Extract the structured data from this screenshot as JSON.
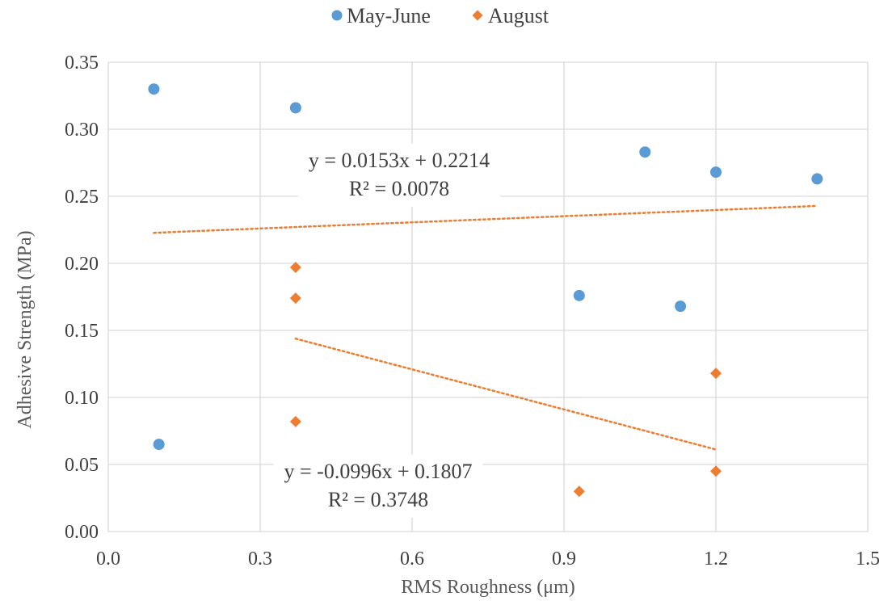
{
  "chart_data": {
    "type": "scatter",
    "title": "",
    "xlabel": "RMS Roughness (μm)",
    "ylabel": "Adhesive Strength (MPa)",
    "xlim": [
      0.0,
      1.5
    ],
    "ylim": [
      0.0,
      0.35
    ],
    "x_ticks": [
      "0.0",
      "0.3",
      "0.6",
      "0.9",
      "1.2",
      "1.5"
    ],
    "y_ticks": [
      "0.00",
      "0.05",
      "0.10",
      "0.15",
      "0.20",
      "0.25",
      "0.30",
      "0.35"
    ],
    "grid": true,
    "legend_position": "top-center",
    "series": [
      {
        "name": "May-June",
        "marker": "circle",
        "color": "#5B9BD5",
        "points": [
          {
            "x": 0.09,
            "y": 0.33
          },
          {
            "x": 0.1,
            "y": 0.065
          },
          {
            "x": 0.37,
            "y": 0.316
          },
          {
            "x": 0.93,
            "y": 0.176
          },
          {
            "x": 1.06,
            "y": 0.283
          },
          {
            "x": 1.13,
            "y": 0.168
          },
          {
            "x": 1.2,
            "y": 0.268
          },
          {
            "x": 1.4,
            "y": 0.263
          }
        ]
      },
      {
        "name": "August",
        "marker": "diamond",
        "color": "#ED7D31",
        "points": [
          {
            "x": 0.37,
            "y": 0.197
          },
          {
            "x": 0.37,
            "y": 0.174
          },
          {
            "x": 0.37,
            "y": 0.082
          },
          {
            "x": 0.93,
            "y": 0.03
          },
          {
            "x": 1.2,
            "y": 0.118
          },
          {
            "x": 1.2,
            "y": 0.045
          }
        ]
      }
    ],
    "trendlines": [
      {
        "color": "#ED7D31",
        "style": "dotted",
        "slope": 0.0153,
        "intercept": 0.2214,
        "x_range": [
          0.09,
          1.4
        ],
        "equation": "y = 0.0153x + 0.2214",
        "r_squared": "R² = 0.0078"
      },
      {
        "color": "#ED7D31",
        "style": "dotted",
        "slope": -0.0996,
        "intercept": 0.1807,
        "x_range": [
          0.37,
          1.2
        ],
        "equation": "y = -0.0996x + 0.1807",
        "r_squared": "R² = 0.3748"
      }
    ]
  }
}
